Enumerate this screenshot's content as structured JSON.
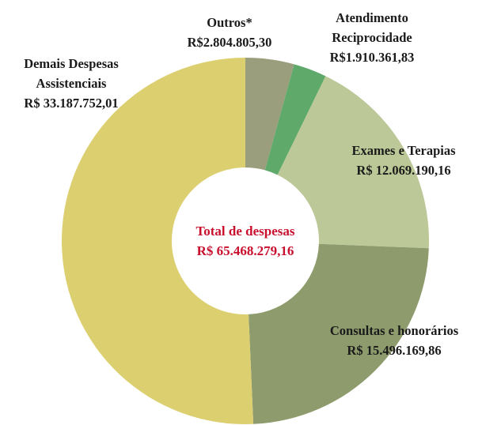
{
  "chart_data": {
    "type": "donut",
    "categories": [
      "Outros*",
      "Atendimento Reciprocidade",
      "Exames e Terapias",
      "Consultas e honorários",
      "Demais Despesas Assistenciais"
    ],
    "values": [
      2804805.3,
      1910361.83,
      12069190.16,
      15496169.86,
      33187752.01
    ],
    "value_labels": [
      "R$2.804.805,30",
      "R$1.910.361,83",
      "R$ 12.069.190,16",
      "R$ 15.496.169,86",
      "R$ 33.187.752,01"
    ],
    "colors": [
      "#9a9e7d",
      "#5faa6a",
      "#bcc897",
      "#8d9b6d",
      "#dccf70"
    ],
    "center_title": "Total de despesas",
    "center_value": "R$ 65.468.279,16"
  }
}
